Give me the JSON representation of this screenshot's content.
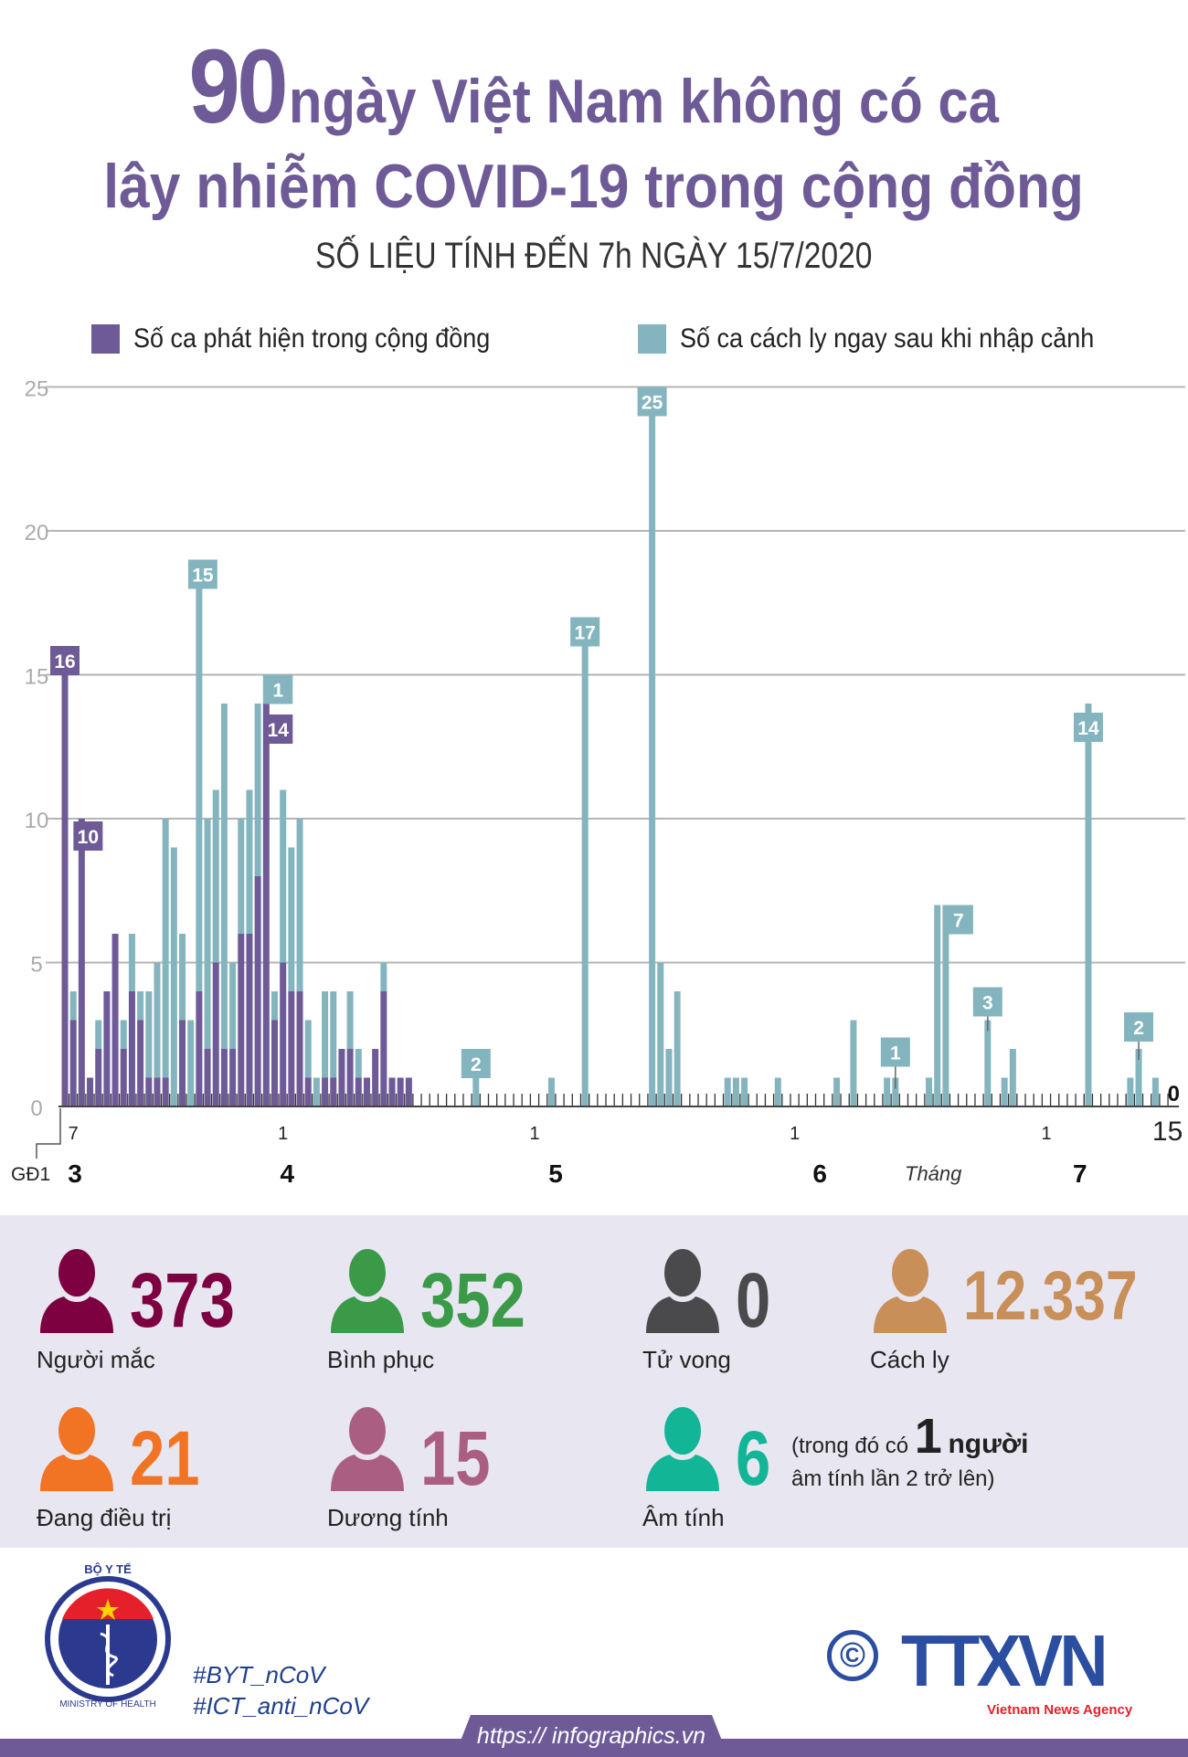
{
  "header": {
    "title_number": "90",
    "title_line1_rest": "ngày Việt Nam không có ca",
    "title_line2": "lây nhiễm COVID-19 trong cộng đồng",
    "subtitle": "SỐ LIỆU TÍNH ĐẾN 7h NGÀY 15/7/2020"
  },
  "colors": {
    "title": "#6e5a96",
    "community": "#6e5a96",
    "imported": "#84b5bf",
    "stats_bg": "#e8e7f1"
  },
  "chart_data": {
    "type": "bar",
    "stacked": true,
    "first_category": "GĐ1",
    "start_date": "2020-03-07",
    "end_date": "2020-07-15",
    "ylim": [
      0,
      25
    ],
    "y_ticks": [
      "0",
      "5",
      "10",
      "15",
      "20",
      "25"
    ],
    "grid": true,
    "legend_position": "top",
    "series": [
      {
        "name": "Số ca phát hiện trong cộng đồng",
        "color": "#6e5a96",
        "values": [
          16,
          3,
          10,
          1,
          2,
          4,
          6,
          2,
          4,
          3,
          1,
          1,
          1,
          0,
          3,
          0,
          4,
          2,
          5,
          2,
          2,
          6,
          6,
          8,
          14,
          3,
          5,
          4,
          4,
          1,
          0,
          1,
          1,
          2,
          2,
          1,
          1,
          2,
          4,
          1,
          1,
          1,
          0,
          0,
          0,
          0,
          0,
          0,
          0,
          0,
          0,
          0,
          0,
          0,
          0,
          0,
          0,
          0,
          0,
          0,
          0,
          0,
          0,
          0,
          0,
          0,
          0,
          0,
          0,
          0,
          0,
          0,
          0,
          0,
          0,
          0,
          0,
          0,
          0,
          0,
          0,
          0,
          0,
          0,
          0,
          0,
          0,
          0,
          0,
          0,
          0,
          0,
          0,
          0,
          0,
          0,
          0,
          0,
          0,
          0,
          0,
          0,
          0,
          0,
          0,
          0,
          0,
          0,
          0,
          0,
          0,
          0,
          0,
          0,
          0,
          0,
          0,
          0,
          0,
          0,
          0,
          0,
          0,
          0,
          0,
          0,
          0,
          0,
          0,
          0,
          0,
          0
        ]
      },
      {
        "name": "Số ca cách ly ngay sau khi nhập cảnh",
        "color": "#84b5bf",
        "values": [
          0,
          1,
          0,
          0,
          1,
          0,
          0,
          1,
          2,
          1,
          3,
          4,
          9,
          9,
          3,
          3,
          15,
          8,
          6,
          12,
          3,
          4,
          5,
          6,
          1,
          1,
          6,
          5,
          6,
          2,
          1,
          3,
          3,
          0,
          2,
          1,
          0,
          0,
          1,
          0,
          0,
          0,
          0,
          0,
          0,
          0,
          0,
          0,
          0,
          2,
          0,
          0,
          0,
          0,
          0,
          0,
          0,
          0,
          1,
          0,
          0,
          0,
          17,
          0,
          0,
          0,
          0,
          0,
          0,
          0,
          25,
          5,
          2,
          4,
          0,
          0,
          0,
          0,
          0,
          1,
          1,
          1,
          0,
          0,
          0,
          1,
          0,
          0,
          0,
          0,
          0,
          0,
          1,
          0,
          3,
          0,
          0,
          0,
          1,
          1,
          0,
          0,
          0,
          1,
          7,
          7,
          0,
          0,
          0,
          0,
          3,
          0,
          1,
          2,
          0,
          0,
          0,
          0,
          0,
          0,
          0,
          0,
          14,
          0,
          0,
          0,
          0,
          1,
          2,
          0,
          1,
          0
        ]
      }
    ],
    "data_labels": [
      {
        "index": 0,
        "series": 0,
        "text": "16"
      },
      {
        "index": 2,
        "series": 0,
        "text": "10"
      },
      {
        "index": 16,
        "series": 1,
        "text": "15"
      },
      {
        "index": 24,
        "series": 1,
        "text": "1"
      },
      {
        "index": 24,
        "series": 0,
        "text": "14"
      },
      {
        "index": 49,
        "series": 1,
        "text": "2"
      },
      {
        "index": 62,
        "series": 1,
        "text": "17"
      },
      {
        "index": 70,
        "series": 1,
        "text": "25"
      },
      {
        "index": 99,
        "series": 1,
        "text": "1"
      },
      {
        "index": 105,
        "series": 1,
        "text": "7"
      },
      {
        "index": 110,
        "series": 1,
        "text": "3"
      },
      {
        "index": 122,
        "series": 1,
        "text": "14"
      },
      {
        "index": 128,
        "series": 1,
        "text": "2"
      },
      {
        "index": 131,
        "series": 0,
        "text": "0"
      }
    ],
    "x_day_ticks": [
      {
        "index": 1,
        "label": "7"
      },
      {
        "index": 26,
        "label": "1"
      },
      {
        "index": 56,
        "label": "1"
      },
      {
        "index": 87,
        "label": "1"
      },
      {
        "index": 117,
        "label": "1"
      },
      {
        "index": 131,
        "label": "15"
      }
    ],
    "x_month_labels": [
      {
        "index": 1.2,
        "label": "3"
      },
      {
        "index": 26.5,
        "label": "4"
      },
      {
        "index": 58.5,
        "label": "5"
      },
      {
        "index": 90,
        "label": "6"
      },
      {
        "index": 121,
        "label": "7"
      }
    ],
    "x_month_title": "Tháng",
    "phase_label": "GĐ1"
  },
  "stats": [
    {
      "value": "373",
      "label": "Người mắc",
      "color": "#7d0041"
    },
    {
      "value": "352",
      "label": "Bình phục",
      "color": "#3a9a48"
    },
    {
      "value": "0",
      "label": "Tử vong",
      "color": "#4a4a4c"
    },
    {
      "value": "12.337",
      "label": "Cách ly",
      "color": "#c98f58"
    },
    {
      "value": "21",
      "label": "Đang điều trị",
      "color": "#f07424"
    },
    {
      "value": "15",
      "label": "Dương tính",
      "color": "#ab5f80"
    },
    {
      "value": "6",
      "label": "Âm tính",
      "color": "#13b597"
    }
  ],
  "note": {
    "prefix": "(trong đó có",
    "count": "1",
    "unit": "người",
    "line2": "âm tính lần 2 trở lên)"
  },
  "footer": {
    "moh_logo_text_top": "BỘ Y TẾ",
    "moh_logo_text_bottom": "MINISTRY OF HEALTH",
    "hashtags": [
      "#BYT_nCoV",
      "#ICT_anti_nCoV"
    ],
    "copyright_symbol": "©",
    "agency_logo": "TTXVN",
    "agency_name": "Vietnam News Agency",
    "url": "https:// infographics.vn"
  }
}
